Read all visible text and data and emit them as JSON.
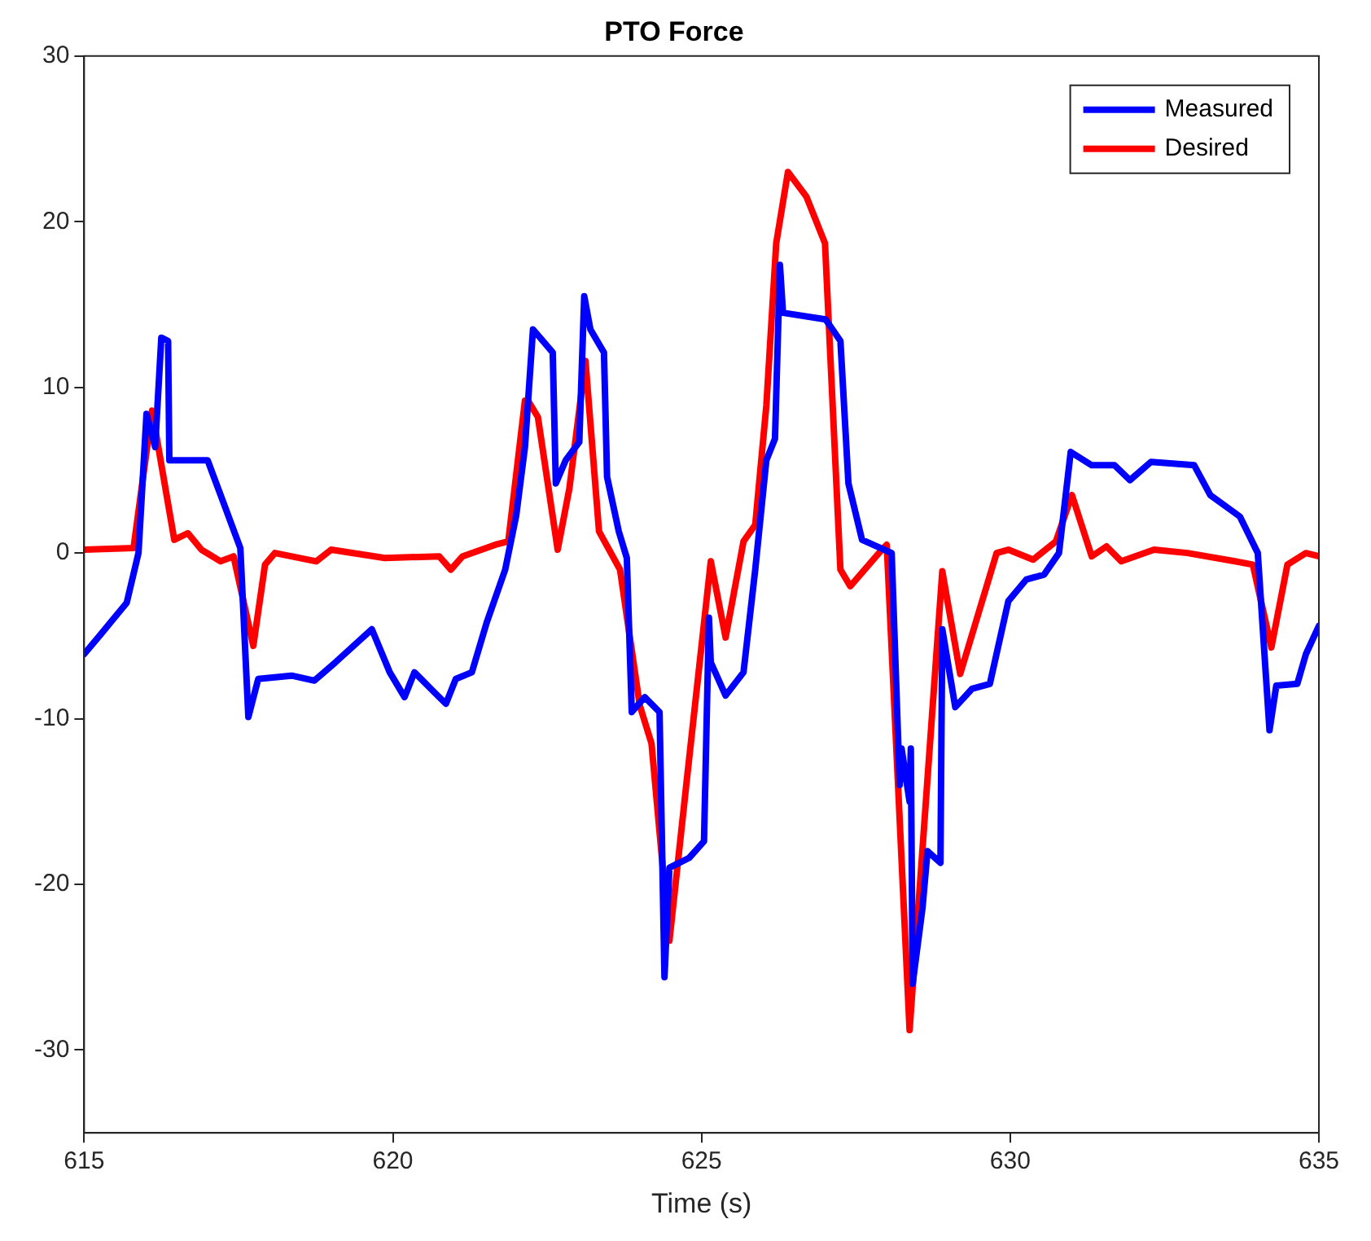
{
  "chart_data": {
    "type": "line",
    "title": "PTO Force",
    "xlabel": "Time (s)",
    "xlim": [
      615,
      635
    ],
    "xticks": [
      615,
      620,
      625,
      630,
      635
    ],
    "ylim": [
      -35,
      30
    ],
    "yticks": [
      -30,
      -20,
      -10,
      0,
      10,
      20,
      30
    ],
    "grid": false,
    "legend": "top right",
    "marker": "none",
    "line_style": "solid",
    "series": [
      {
        "name": "Measured",
        "color": "#0000ff",
        "x": [
          615,
          615.27,
          615.69,
          615.88,
          616.01,
          616.15,
          616.25,
          616.36,
          616.38,
          617.0,
          617.29,
          617.53,
          617.66,
          617.82,
          618.36,
          618.73,
          619.07,
          619.66,
          619.95,
          620.19,
          620.35,
          620.67,
          620.86,
          621.02,
          621.28,
          621.52,
          621.82,
          622.0,
          622.14,
          622.27,
          622.59,
          622.64,
          622.8,
          623.02,
          623.1,
          623.2,
          623.42,
          623.47,
          623.66,
          623.79,
          623.87,
          624.08,
          624.32,
          624.4,
          624.48,
          624.8,
          625.04,
          625.12,
          625.15,
          625.39,
          625.68,
          625.87,
          626.05,
          626.19,
          626.27,
          626.32,
          627.01,
          627.25,
          627.38,
          627.6,
          628.08,
          628.21,
          628.24,
          628.37,
          628.39,
          628.42,
          628.58,
          628.66,
          628.87,
          628.9,
          629.11,
          629.38,
          629.67,
          629.97,
          630.26,
          630.55,
          630.79,
          630.98,
          631.32,
          631.69,
          631.94,
          632.28,
          632.98,
          633.24,
          633.72,
          634.01,
          634.2,
          634.31,
          634.65,
          634.79,
          635
        ],
        "values": [
          -6.1,
          -4.9,
          -3.0,
          0,
          8.4,
          6.4,
          13,
          12.8,
          5.6,
          5.6,
          2.7,
          0.3,
          -9.9,
          -7.6,
          -7.4,
          -7.7,
          -6.6,
          -4.6,
          -7.2,
          -8.7,
          -7.2,
          -8.4,
          -9.1,
          -7.6,
          -7.2,
          -4.2,
          -1.0,
          2.3,
          6.4,
          13.5,
          12.1,
          4.2,
          5.6,
          6.7,
          15.5,
          13.5,
          12.1,
          4.6,
          1.3,
          -0.3,
          -9.6,
          -8.7,
          -9.6,
          -25.6,
          -19.0,
          -18.4,
          -17.4,
          -3.9,
          -6.6,
          -8.6,
          -7.2,
          -1.0,
          5.6,
          6.9,
          17.4,
          14.5,
          14.1,
          12.8,
          4.2,
          0.8,
          0,
          -14,
          -11.8,
          -15.0,
          -11.8,
          -26,
          -21.4,
          -18.0,
          -18.7,
          -4.6,
          -9.3,
          -8.2,
          -7.9,
          -2.9,
          -1.6,
          -1.3,
          0,
          6.1,
          5.3,
          5.3,
          4.4,
          5.5,
          5.3,
          3.5,
          2.2,
          0,
          -10.7,
          -8.0,
          -7.9,
          -6.1,
          -4.4
        ]
      },
      {
        "name": "Desired",
        "color": "#ff0000",
        "x": [
          615,
          615.8,
          616.1,
          616.46,
          616.68,
          616.9,
          617.21,
          617.42,
          617.74,
          617.93,
          618.09,
          618.76,
          619.0,
          619.87,
          620.75,
          620.94,
          621.13,
          621.66,
          621.87,
          622.14,
          622.19,
          622.35,
          622.67,
          622.86,
          623.12,
          623.34,
          623.68,
          624.0,
          624.19,
          624.48,
          624.75,
          625.15,
          625.39,
          625.68,
          625.87,
          626.05,
          626.21,
          626.4,
          626.7,
          627.0,
          627.25,
          627.41,
          627.92,
          628.0,
          628.37,
          628.9,
          629.19,
          629.78,
          629.97,
          630.37,
          630.74,
          631.0,
          631.32,
          631.56,
          631.8,
          632.33,
          632.87,
          633.64,
          633.93,
          634.23,
          634.49,
          634.79,
          635
        ],
        "values": [
          0.2,
          0.3,
          8.6,
          0.8,
          1.2,
          0.2,
          -0.5,
          -0.2,
          -5.6,
          -0.7,
          0,
          -0.5,
          0.2,
          -0.3,
          -0.2,
          -1.0,
          -0.2,
          0.5,
          0.7,
          9.2,
          9.2,
          8.2,
          0.2,
          3.9,
          11.6,
          1.3,
          -1.0,
          -9.2,
          -11.5,
          -23.4,
          -14.1,
          -0.5,
          -5.1,
          0.7,
          1.7,
          8.9,
          18.7,
          23,
          21.5,
          18.7,
          -1,
          -2,
          0.2,
          0.5,
          -28.8,
          -1.1,
          -7.3,
          0,
          0.2,
          -0.4,
          0.7,
          3.5,
          -0.2,
          0.4,
          -0.5,
          0.2,
          0,
          -0.5,
          -0.7,
          -5.7,
          -0.7,
          0,
          -0.2
        ]
      }
    ]
  }
}
